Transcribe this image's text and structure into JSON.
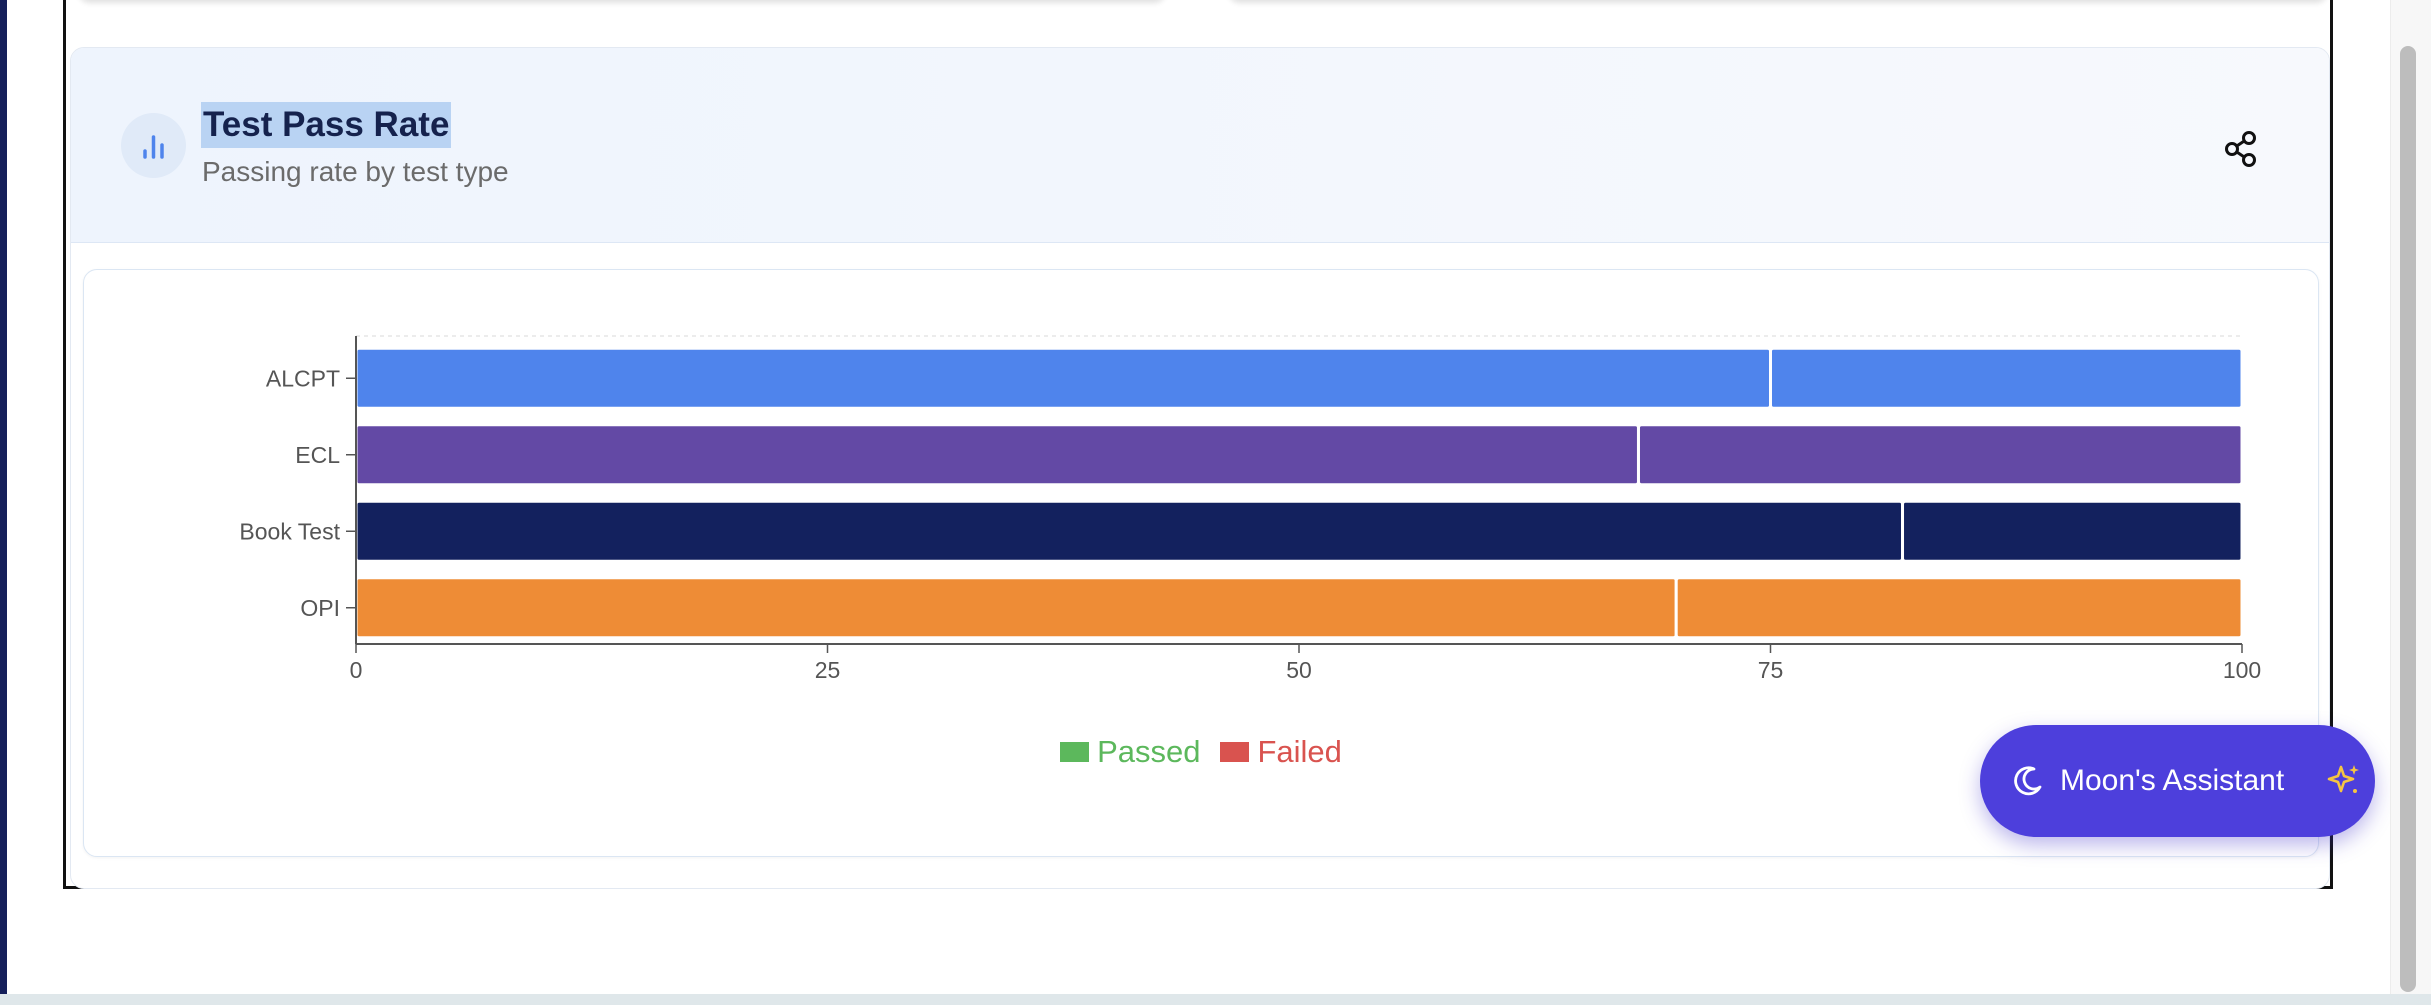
{
  "card": {
    "title": "Test Pass Rate",
    "subtitle": "Passing rate by test type"
  },
  "assistant": {
    "label": "Moon's Assistant"
  },
  "chart_data": {
    "type": "bar",
    "orientation": "horizontal",
    "stacked": true,
    "categories": [
      "ALCPT",
      "ECL",
      "Book Test",
      "OPI"
    ],
    "series": [
      {
        "name": "Passed",
        "values": [
          75,
          68,
          82,
          70
        ],
        "legend_color": "#5cb85c"
      },
      {
        "name": "Failed",
        "values": [
          25,
          32,
          18,
          30
        ],
        "legend_color": "#d9534f"
      }
    ],
    "bar_colors": [
      "#4f84ec",
      "#6349a5",
      "#13215e",
      "#ee8c36"
    ],
    "x_ticks": [
      "0",
      "25",
      "50",
      "75",
      "100"
    ],
    "xlim": [
      0,
      100
    ],
    "title": "",
    "xlabel": "",
    "ylabel": "",
    "legend_position": "bottom",
    "grid": false
  }
}
